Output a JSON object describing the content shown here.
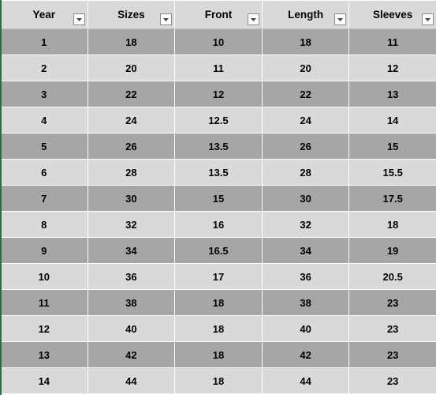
{
  "table": {
    "headers": [
      "Year",
      "Sizes",
      "Front",
      "Length",
      "Sleeves"
    ],
    "rows": [
      [
        "1",
        "18",
        "10",
        "18",
        "11"
      ],
      [
        "2",
        "20",
        "11",
        "20",
        "12"
      ],
      [
        "3",
        "22",
        "12",
        "22",
        "13"
      ],
      [
        "4",
        "24",
        "12.5",
        "24",
        "14"
      ],
      [
        "5",
        "26",
        "13.5",
        "26",
        "15"
      ],
      [
        "6",
        "28",
        "13.5",
        "28",
        "15.5"
      ],
      [
        "7",
        "30",
        "15",
        "30",
        "17.5"
      ],
      [
        "8",
        "32",
        "16",
        "32",
        "18"
      ],
      [
        "9",
        "34",
        "16.5",
        "34",
        "19"
      ],
      [
        "10",
        "36",
        "17",
        "36",
        "20.5"
      ],
      [
        "11",
        "38",
        "18",
        "38",
        "23"
      ],
      [
        "12",
        "40",
        "18",
        "40",
        "23"
      ],
      [
        "13",
        "42",
        "18",
        "42",
        "23"
      ],
      [
        "14",
        "44",
        "18",
        "44",
        "23"
      ]
    ]
  },
  "colors": {
    "header_bg": "#d9d9d9",
    "band_dark": "#a6a6a6",
    "band_light": "#d9d9d9",
    "selection_accent": "#217346"
  },
  "icons": {
    "filter": "filter-dropdown-icon"
  }
}
